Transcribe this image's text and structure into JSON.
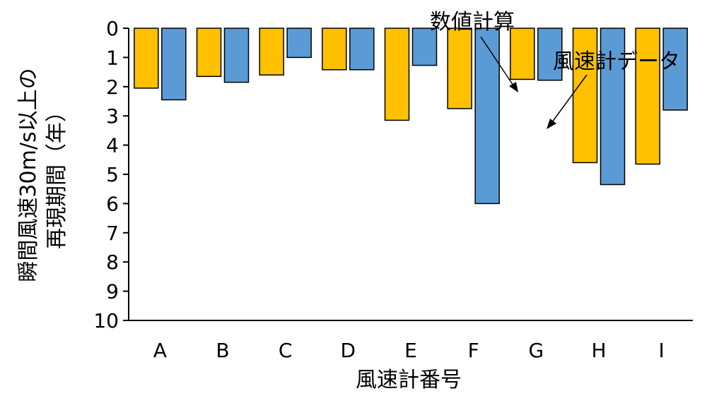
{
  "chart_data": {
    "type": "bar",
    "categories": [
      "A",
      "B",
      "C",
      "D",
      "E",
      "F",
      "G",
      "H",
      "I"
    ],
    "series": [
      {
        "name": "数値計算",
        "color": "#FFC000",
        "values": [
          2.05,
          1.65,
          1.6,
          1.42,
          3.15,
          2.75,
          1.75,
          4.6,
          4.65
        ]
      },
      {
        "name": "風速計データ",
        "color": "#5B9BD5",
        "values": [
          2.45,
          1.85,
          1.0,
          1.42,
          1.27,
          6.0,
          1.78,
          5.35,
          2.8
        ]
      }
    ],
    "xlabel": "風速計番号",
    "ylabel_line1": "瞬間風速30m/s以上の",
    "ylabel_line2": "再現期間（年）",
    "ylim": [
      0,
      10
    ],
    "y_inverted": true,
    "yticks": [
      "0",
      "1",
      "2",
      "3",
      "4",
      "5",
      "6",
      "7",
      "8",
      "9",
      "10"
    ],
    "grid": false,
    "legend": "none",
    "annotations": [
      "数値計算",
      "風速計データ"
    ]
  }
}
